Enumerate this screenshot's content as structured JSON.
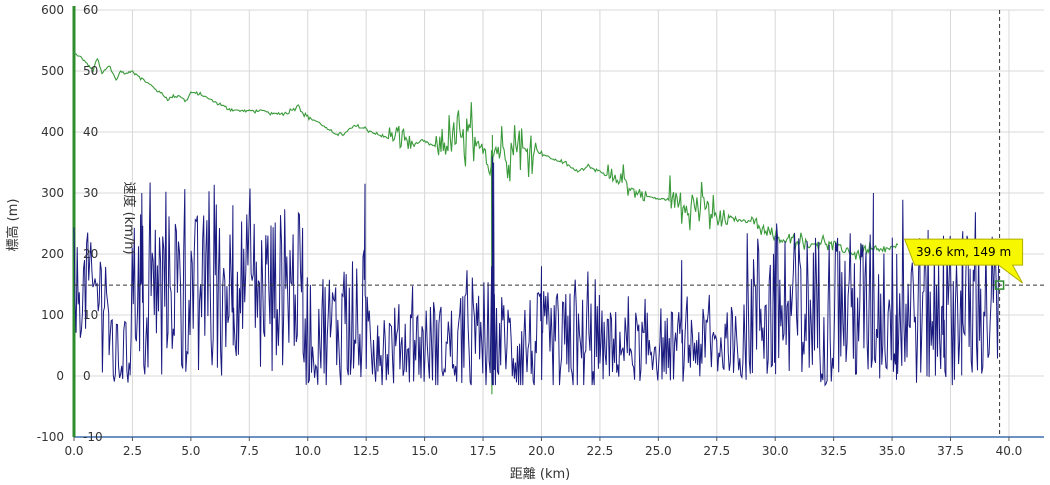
{
  "chart_data": {
    "type": "line",
    "title": "",
    "xlabel": "距離 (km)",
    "ylabel": "標高 (m)",
    "y2label": "速度 (km/h)",
    "xlim": [
      0,
      41.5
    ],
    "ylim": [
      -100,
      600
    ],
    "y2lim": [
      -10,
      60
    ],
    "grid": true,
    "x_ticks": [
      "0.0",
      "2.5",
      "5.0",
      "7.5",
      "10.0",
      "12.5",
      "15.0",
      "17.5",
      "20.0",
      "22.5",
      "25.0",
      "27.5",
      "30.0",
      "32.5",
      "35.0",
      "37.5",
      "40.0"
    ],
    "x_tick_values": [
      0,
      2.5,
      5,
      7.5,
      10,
      12.5,
      15,
      17.5,
      20,
      22.5,
      25,
      27.5,
      30,
      32.5,
      35,
      37.5,
      40
    ],
    "y_ticks": [
      "-100",
      "0",
      "100",
      "200",
      "300",
      "400",
      "500",
      "600"
    ],
    "y_tick_values": [
      -100,
      0,
      100,
      200,
      300,
      400,
      500,
      600
    ],
    "y2_ticks": [
      "-10",
      "0",
      "10",
      "20",
      "30",
      "40",
      "50",
      "60"
    ],
    "y2_tick_values": [
      -10,
      0,
      10,
      20,
      30,
      40,
      50,
      60
    ],
    "series": [
      {
        "name": "標高",
        "axis": "left",
        "color": "#3a9a3a",
        "x": [
          0,
          0.5,
          0.8,
          1.0,
          1.2,
          1.5,
          1.8,
          2.0,
          2.2,
          2.5,
          3.0,
          3.5,
          4.0,
          4.5,
          4.8,
          5.0,
          5.5,
          6.0,
          6.5,
          7.0,
          7.5,
          8.0,
          8.5,
          9.0,
          9.5,
          9.6,
          9.8,
          10.0,
          10.5,
          11.0,
          11.5,
          12.0,
          12.5,
          13.0,
          13.5,
          14.0,
          14.5,
          15.0,
          15.5,
          16.0,
          16.5,
          16.8,
          17.0,
          17.2,
          17.5,
          17.8,
          18.0,
          18.3,
          18.6,
          19.0,
          19.3,
          19.6,
          20.0,
          20.5,
          21.0,
          21.5,
          22.0,
          22.5,
          23.0,
          23.5,
          24.0,
          24.5,
          25.0,
          25.5,
          26.0,
          26.5,
          27.0,
          27.5,
          28.0,
          28.5,
          29.0,
          29.5,
          30.0,
          30.5,
          31.0,
          31.5,
          32.0,
          32.5,
          33.0,
          33.5,
          34.0,
          34.5,
          35.0,
          35.3
        ],
        "y": [
          530,
          515,
          500,
          520,
          495,
          510,
          485,
          500,
          495,
          500,
          485,
          470,
          455,
          460,
          450,
          465,
          460,
          450,
          440,
          435,
          435,
          435,
          430,
          430,
          440,
          445,
          430,
          425,
          415,
          400,
          395,
          410,
          405,
          395,
          390,
          395,
          380,
          385,
          375,
          380,
          390,
          390,
          400,
          365,
          380,
          340,
          370,
          375,
          360,
          385,
          365,
          375,
          365,
          355,
          350,
          335,
          345,
          335,
          320,
          325,
          300,
          295,
          290,
          290,
          285,
          275,
          280,
          255,
          260,
          255,
          255,
          240,
          225,
          220,
          225,
          215,
          220,
          215,
          205,
          200,
          205,
          205,
          210,
          215
        ],
        "volatile": [
          [
            13.5,
            14.5,
            30
          ],
          [
            15.5,
            17.4,
            55
          ],
          [
            17.5,
            19.8,
            45
          ],
          [
            22.8,
            24.5,
            25
          ],
          [
            25.5,
            28.0,
            45
          ],
          [
            29.0,
            31.5,
            18
          ],
          [
            31.8,
            35.0,
            15
          ]
        ]
      },
      {
        "name": "速度",
        "axis": "right",
        "color": "#1a1a80",
        "segments": [
          {
            "x0": 0,
            "x1": 1.5,
            "base": 14,
            "amp": 8
          },
          {
            "x0": 1.5,
            "x1": 2.4,
            "base": 3,
            "amp": 6
          },
          {
            "x0": 2.4,
            "x1": 9.8,
            "base": 15,
            "amp": 12
          },
          {
            "x0": 9.8,
            "x1": 13.0,
            "base": 8,
            "amp": 10
          },
          {
            "x0": 13.0,
            "x1": 16.5,
            "base": 5,
            "amp": 7
          },
          {
            "x0": 16.5,
            "x1": 19.6,
            "base": 5,
            "amp": 9
          },
          {
            "x0": 19.6,
            "x1": 22.5,
            "base": 4,
            "amp": 10
          },
          {
            "x0": 22.5,
            "x1": 28.8,
            "base": 5,
            "amp": 6
          },
          {
            "x0": 28.8,
            "x1": 39.6,
            "base": 11,
            "amp": 13
          }
        ],
        "peaks": [
          [
            2.9,
            30
          ],
          [
            6.8,
            28
          ],
          [
            12.45,
            31.5
          ],
          [
            17.9,
            36
          ],
          [
            34.2,
            30
          ],
          [
            30.0,
            23
          ],
          [
            35.2,
            20
          ],
          [
            37.2,
            23
          ],
          [
            38.0,
            22
          ],
          [
            20.0,
            18
          ],
          [
            26.0,
            19
          ]
        ]
      }
    ],
    "marker": {
      "x": 39.6,
      "y": 149,
      "label": "39.6 km, 149 m"
    },
    "crosshair": {
      "x": 39.6,
      "y": 149
    }
  }
}
